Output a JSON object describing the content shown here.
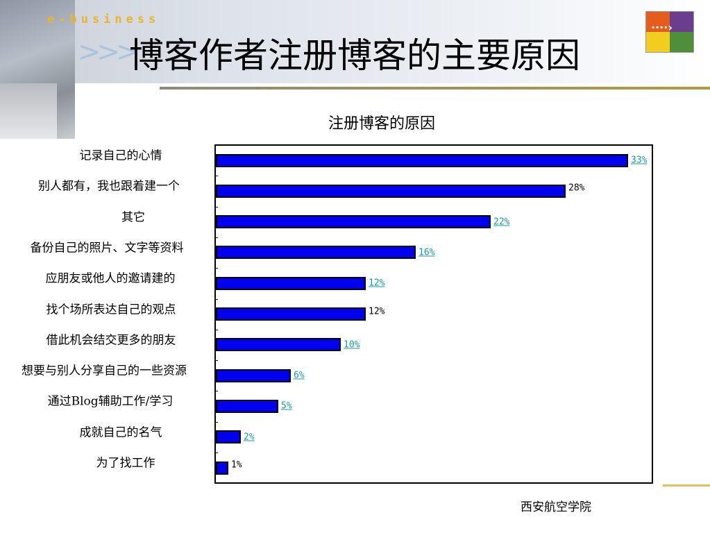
{
  "header": {
    "brand_text": "e-business",
    "title": "博客作者注册博客的主要原因"
  },
  "footer": {
    "institution": "西安航空学院"
  },
  "colors": {
    "bar": "#0000ee",
    "label_link": "#1a9a9a",
    "label_plain": "#000000"
  },
  "chart_data": {
    "type": "bar",
    "orientation": "horizontal",
    "title": "注册博客的原因",
    "categories": [
      "记录自己的心情",
      "别人都有，我也跟着建一个",
      "其它",
      "备份自己的照片、文字等资料",
      "应朋友或他人的邀请建的",
      "找个场所表达自己的观点",
      "借此机会结交更多的朋友",
      "想要与别人分享自己的一些资源",
      "通过Blog辅助工作/学习",
      "成就自己的名气",
      "为了找工作"
    ],
    "values": [
      33,
      28,
      22,
      16,
      12,
      12,
      10,
      6,
      5,
      2,
      1
    ],
    "labels": [
      "33%",
      "28%",
      "22%",
      "16%",
      "12%",
      "12%",
      "10%",
      "6%",
      "5%",
      "2%",
      "1%"
    ],
    "label_linked": [
      true,
      false,
      true,
      true,
      true,
      false,
      true,
      true,
      true,
      true,
      false
    ],
    "xlim": [
      0,
      35
    ],
    "unit": "%",
    "grid": false,
    "legend": "none"
  }
}
